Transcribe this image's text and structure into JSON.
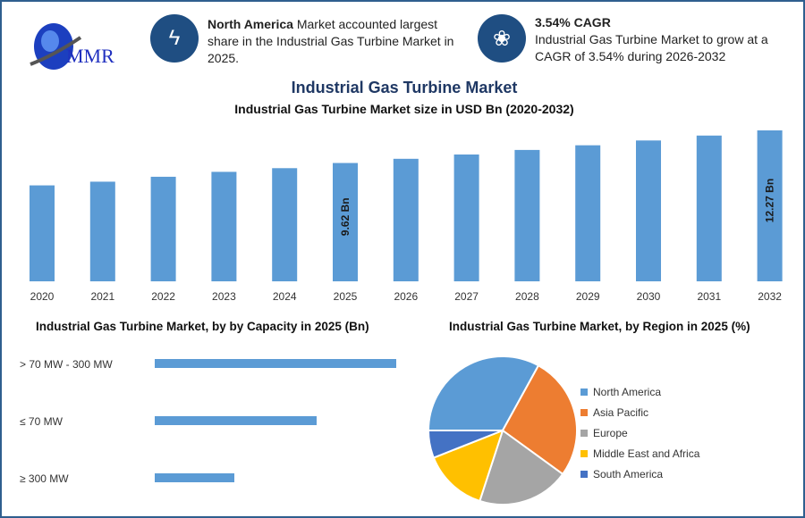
{
  "header": {
    "logo_text": "MMR",
    "info1": {
      "icon": "lightning-icon",
      "bold": "North America",
      "text": " Market accounted largest share in the Industrial Gas Turbine Market in 2025."
    },
    "info2": {
      "icon": "flame-icon",
      "bold": "3.54% CAGR",
      "text": "Industrial Gas Turbine Market to grow at a CAGR of 3.54% during 2026-2032"
    }
  },
  "colors": {
    "brand": "#1f4e82",
    "bar": "#5b9bd5",
    "border": "#2f5f8f"
  },
  "chart_data": [
    {
      "type": "bar",
      "title": "Industrial Gas Turbine Market",
      "subtitle": "Industrial Gas Turbine Market size in USD Bn (2020-2032)",
      "categories": [
        "2020",
        "2021",
        "2022",
        "2023",
        "2024",
        "2025",
        "2026",
        "2027",
        "2028",
        "2029",
        "2030",
        "2031",
        "2032"
      ],
      "values": [
        7.8,
        8.1,
        8.5,
        8.9,
        9.2,
        9.62,
        9.96,
        10.31,
        10.68,
        11.06,
        11.45,
        11.85,
        12.27
      ],
      "data_labels": {
        "2025": "9.62 Bn",
        "2032": "12.27 Bn"
      },
      "grid": false
    },
    {
      "type": "bar",
      "orientation": "horizontal",
      "title": "Industrial Gas Turbine Market, by by Capacity in 2025 (Bn)",
      "categories": [
        "> 70 MW - 300 MW",
        "≤ 70 MW",
        "≥ 300 MW"
      ],
      "values": [
        1.0,
        0.67,
        0.33
      ]
    },
    {
      "type": "pie",
      "title": "Industrial Gas Turbine Market, by Region in 2025 (%)",
      "legend_position": "right",
      "slices": [
        {
          "name": "North America",
          "value": 33,
          "color": "#5b9bd5"
        },
        {
          "name": "Asia Pacific",
          "value": 27,
          "color": "#ed7d31"
        },
        {
          "name": "Europe",
          "value": 20,
          "color": "#a5a5a5"
        },
        {
          "name": "Middle East and Africa",
          "value": 14,
          "color": "#ffc000"
        },
        {
          "name": "South America",
          "value": 6,
          "color": "#4472c4"
        }
      ]
    }
  ]
}
